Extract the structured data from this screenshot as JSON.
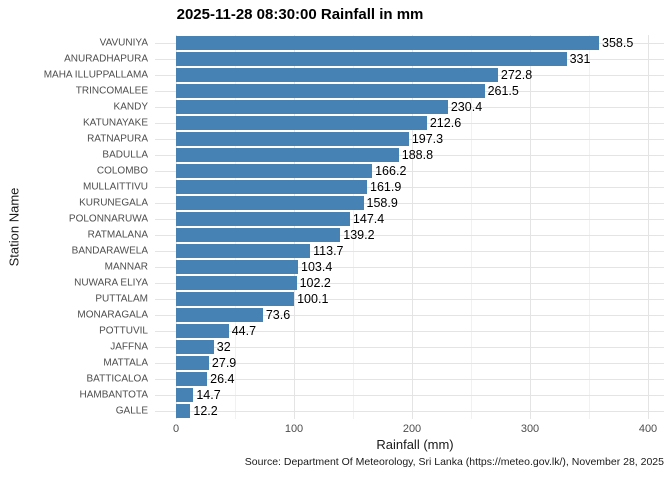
{
  "title": "2025-11-28 08:30:00 Rainfall in mm",
  "caption": "Source: Department Of Meteorology, Sri Lanka (https://meteo.gov.lk/), November 28, 2025",
  "colors": {
    "bar": "#4682B4",
    "grid_major": "#e4e4e4",
    "grid_minor": "#f1f1f1",
    "axis_text": "#4d4d4d",
    "text": "#000000",
    "background": "#ffffff"
  },
  "chart_data": {
    "type": "bar",
    "orientation": "horizontal",
    "title": "2025-11-28 08:30:00 Rainfall in mm",
    "xlabel": "Rainfall (mm)",
    "ylabel": "Station Name",
    "categories": [
      "VAVUNIYA",
      "ANURADHAPURA",
      "MAHA ILLUPPALLAMA",
      "TRINCOMALEE",
      "KANDY",
      "KATUNAYAKE",
      "RATNAPURA",
      "BADULLA",
      "COLOMBO",
      "MULLAITTIVU",
      "KURUNEGALA",
      "POLONNARUWA",
      "RATMALANA",
      "BANDARAWELA",
      "MANNAR",
      "NUWARA ELIYA",
      "PUTTALAM",
      "MONARAGALA",
      "POTTUVIL",
      "JAFFNA",
      "MATTALA",
      "BATTICALOA",
      "HAMBANTOTA",
      "GALLE"
    ],
    "values": [
      358.5,
      331,
      272.8,
      261.5,
      230.4,
      212.6,
      197.3,
      188.8,
      166.2,
      161.9,
      158.9,
      147.4,
      139.2,
      113.7,
      103.4,
      102.2,
      100.1,
      73.6,
      44.7,
      32,
      27.9,
      26.4,
      14.7,
      12.2
    ],
    "x_ticks": [
      0,
      100,
      200,
      300,
      400
    ],
    "xlim": [
      0,
      400
    ],
    "grid": "on",
    "legend": "none",
    "bar_color": "#4682B4",
    "value_labels_shown": true,
    "caption": "Source: Department Of Meteorology, Sri Lanka (https://meteo.gov.lk/), November 28, 2025"
  }
}
